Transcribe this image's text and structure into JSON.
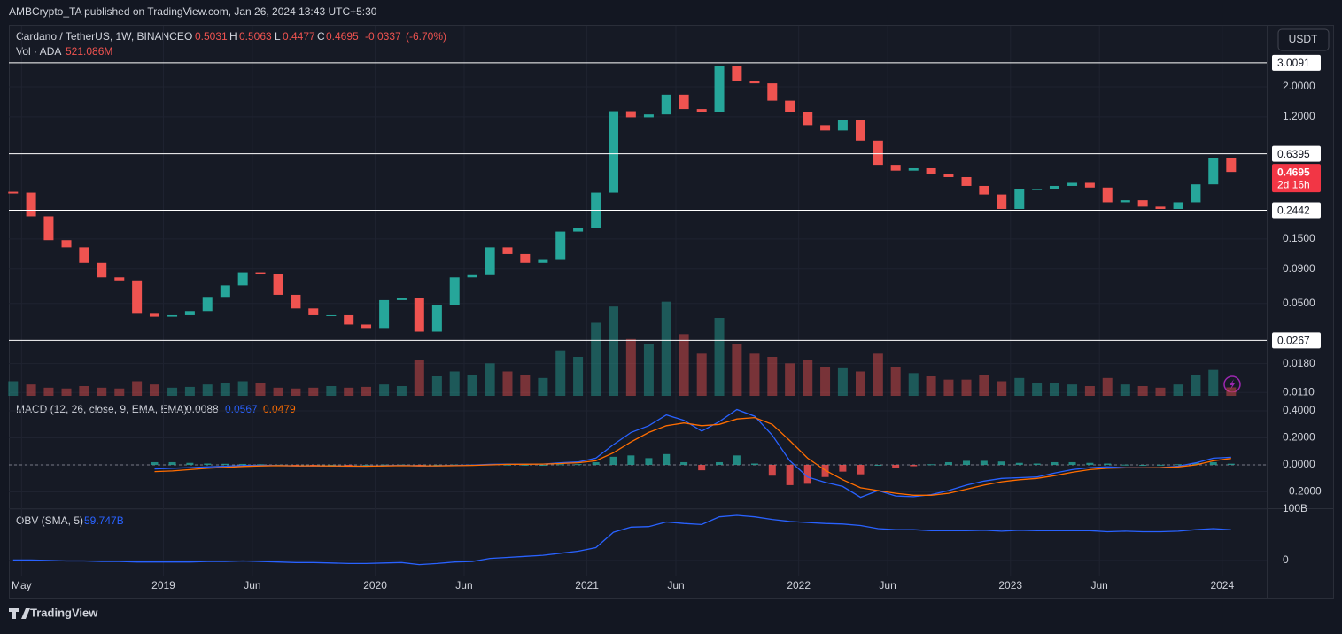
{
  "header": {
    "published": "AMBCrypto_TA published on TradingView.com, Jan 26, 2024 13:43 UTC+5:30",
    "currency": "USDT",
    "countdown": "2d 16h",
    "brand": "TradingView"
  },
  "legend": {
    "symbol": "Cardano / TetherUS, 1W, BINANCE",
    "o_label": "O",
    "open": 0.5031,
    "h_label": "H",
    "high": 0.5063,
    "l_label": "L",
    "low": 0.4477,
    "c_label": "C",
    "close": 0.4695,
    "change": -0.0337,
    "change_pct": "(-6.70%)",
    "vol_label": "Vol · ADA",
    "vol_value": "521.086M"
  },
  "chart_data": {
    "type": "candlestick",
    "log_scale": true,
    "grid": true,
    "up_color": "#26a69a",
    "down_color": "#ef5350",
    "x": [
      2018.29,
      2018.375,
      2018.458,
      2018.542,
      2018.625,
      2018.708,
      2018.792,
      2018.875,
      2018.958,
      2019.042,
      2019.125,
      2019.208,
      2019.292,
      2019.375,
      2019.458,
      2019.542,
      2019.625,
      2019.708,
      2019.792,
      2019.875,
      2019.958,
      2020.042,
      2020.125,
      2020.208,
      2020.292,
      2020.375,
      2020.458,
      2020.542,
      2020.625,
      2020.708,
      2020.792,
      2020.875,
      2020.958,
      2021.042,
      2021.125,
      2021.208,
      2021.292,
      2021.375,
      2021.458,
      2021.542,
      2021.625,
      2021.708,
      2021.792,
      2021.875,
      2021.958,
      2022.042,
      2022.125,
      2022.208,
      2022.292,
      2022.375,
      2022.458,
      2022.542,
      2022.625,
      2022.708,
      2022.792,
      2022.875,
      2022.958,
      2023.042,
      2023.125,
      2023.208,
      2023.292,
      2023.375,
      2023.458,
      2023.542,
      2023.625,
      2023.708,
      2023.792,
      2023.875,
      2023.958,
      2024.042
    ],
    "values": [
      0.33,
      0.22,
      0.147,
      0.13,
      0.1,
      0.078,
      0.074,
      0.042,
      0.04,
      0.041,
      0.044,
      0.056,
      0.068,
      0.085,
      0.083,
      0.058,
      0.046,
      0.041,
      0.041,
      0.035,
      0.033,
      0.053,
      0.055,
      0.031,
      0.049,
      0.078,
      0.081,
      0.13,
      0.116,
      0.1,
      0.105,
      0.17,
      0.18,
      0.33,
      1.32,
      1.19,
      1.25,
      1.75,
      1.37,
      1.3,
      2.85,
      2.2,
      2.12,
      1.58,
      1.31,
      1.04,
      0.95,
      1.13,
      0.8,
      0.53,
      0.48,
      0.5,
      0.45,
      0.43,
      0.37,
      0.32,
      0.25,
      0.35,
      0.35,
      0.37,
      0.39,
      0.36,
      0.28,
      0.29,
      0.26,
      0.25,
      0.28,
      0.38,
      0.59,
      0.4695
    ],
    "xlim": [
      2018.27,
      2024.21
    ],
    "ylim": [
      0.0104,
      5.57
    ],
    "xticks": [
      {
        "value": 2018.33,
        "label": "May"
      },
      {
        "value": 2019,
        "label": "2019"
      },
      {
        "value": 2019.42,
        "label": "Jun"
      },
      {
        "value": 2020,
        "label": "2020"
      },
      {
        "value": 2020.42,
        "label": "Jun"
      },
      {
        "value": 2021,
        "label": "2021"
      },
      {
        "value": 2021.42,
        "label": "Jun"
      },
      {
        "value": 2022,
        "label": "2022"
      },
      {
        "value": 2022.42,
        "label": "Jun"
      },
      {
        "value": 2023,
        "label": "2023"
      },
      {
        "value": 2023.42,
        "label": "Jun"
      },
      {
        "value": 2024,
        "label": "2024"
      }
    ],
    "yticks": [
      {
        "value": 0.011,
        "label": "0.0110"
      },
      {
        "value": 0.018,
        "label": "0.0180"
      },
      {
        "value": 0.05,
        "label": "0.0500"
      },
      {
        "value": 0.09,
        "label": "0.0900"
      },
      {
        "value": 0.15,
        "label": "0.1500"
      },
      {
        "value": 1.2,
        "label": "1.2000"
      },
      {
        "value": 2,
        "label": "2.0000"
      }
    ],
    "levels": [
      3.0091,
      0.6395,
      0.2442,
      0.0267
    ],
    "last_price": 0.4695,
    "volume": {
      "values": [
        900,
        700,
        500,
        450,
        600,
        500,
        450,
        900,
        700,
        500,
        550,
        700,
        800,
        900,
        800,
        500,
        450,
        500,
        600,
        500,
        550,
        700,
        600,
        2200,
        1200,
        1500,
        1300,
        2000,
        1500,
        1300,
        1100,
        2800,
        2400,
        4500,
        5500,
        3500,
        3200,
        5800,
        3800,
        2600,
        4800,
        3200,
        2600,
        2400,
        2000,
        2200,
        1800,
        1700,
        1500,
        2600,
        1800,
        1400,
        1200,
        1000,
        1000,
        1300,
        900,
        1100,
        800,
        800,
        700,
        600,
        1100,
        700,
        600,
        500,
        700,
        1300,
        1600,
        521
      ],
      "lim": [
        0,
        6000
      ]
    },
    "macd": {
      "label": "MACD (12, 26, close, 9, EMA, EMA)",
      "hist_label": 0.0088,
      "macd_label": 0.0567,
      "signal_label": 0.0479,
      "macd_color": "#2962ff",
      "signal_color": "#ff6d00",
      "macd": [
        null,
        null,
        null,
        null,
        null,
        null,
        null,
        null,
        -0.03,
        -0.025,
        -0.02,
        -0.015,
        -0.01,
        -0.005,
        -0.003,
        -0.005,
        -0.008,
        -0.008,
        -0.008,
        -0.01,
        -0.01,
        -0.006,
        -0.004,
        -0.008,
        -0.007,
        -0.004,
        -0.002,
        0.004,
        0.006,
        0.006,
        0.006,
        0.015,
        0.022,
        0.05,
        0.15,
        0.24,
        0.29,
        0.37,
        0.33,
        0.25,
        0.32,
        0.41,
        0.36,
        0.22,
        0.03,
        -0.09,
        -0.13,
        -0.16,
        -0.24,
        -0.19,
        -0.23,
        -0.235,
        -0.22,
        -0.19,
        -0.15,
        -0.12,
        -0.1,
        -0.095,
        -0.09,
        -0.06,
        -0.035,
        -0.02,
        -0.015,
        -0.02,
        -0.022,
        -0.02,
        -0.01,
        0.015,
        0.05,
        0.0567
      ],
      "signal": [
        null,
        null,
        null,
        null,
        null,
        null,
        null,
        null,
        -0.05,
        -0.045,
        -0.035,
        -0.025,
        -0.018,
        -0.012,
        -0.008,
        -0.006,
        -0.007,
        -0.007,
        -0.008,
        -0.009,
        -0.01,
        -0.008,
        -0.006,
        -0.007,
        -0.007,
        -0.006,
        -0.004,
        0.0,
        0.004,
        0.005,
        0.006,
        0.01,
        0.016,
        0.03,
        0.09,
        0.17,
        0.24,
        0.29,
        0.31,
        0.29,
        0.3,
        0.34,
        0.35,
        0.3,
        0.18,
        0.05,
        -0.04,
        -0.11,
        -0.17,
        -0.19,
        -0.21,
        -0.225,
        -0.225,
        -0.21,
        -0.18,
        -0.15,
        -0.125,
        -0.11,
        -0.1,
        -0.08,
        -0.055,
        -0.035,
        -0.025,
        -0.022,
        -0.022,
        -0.021,
        -0.015,
        0.0,
        0.03,
        0.0479
      ],
      "hist": [
        null,
        null,
        null,
        null,
        null,
        null,
        null,
        null,
        0.02,
        0.02,
        0.015,
        0.01,
        0.008,
        0.007,
        0.005,
        0.001,
        -0.001,
        -0.001,
        0,
        -0.001,
        0,
        0.002,
        0.002,
        -0.001,
        0,
        0.002,
        0.002,
        0.004,
        0.002,
        0.001,
        0,
        0.005,
        0.006,
        0.02,
        0.06,
        0.07,
        0.05,
        0.08,
        0.02,
        -0.04,
        0.02,
        0.07,
        0.01,
        -0.08,
        -0.15,
        -0.14,
        -0.09,
        -0.05,
        -0.07,
        0,
        -0.02,
        -0.01,
        0.005,
        0.02,
        0.03,
        0.03,
        0.025,
        0.015,
        0.01,
        0.02,
        0.02,
        0.015,
        0.01,
        0.002,
        0,
        0.001,
        0.005,
        0.015,
        0.02,
        0.0088
      ],
      "ylim": [
        -0.308,
        0.459
      ],
      "yticks": [
        {
          "value": 0.4,
          "label": "0.4000"
        },
        {
          "value": 0.2,
          "label": "0.2000"
        },
        {
          "value": 0,
          "label": "0.0000"
        },
        {
          "value": -0.2,
          "label": "−0.2000"
        }
      ]
    },
    "obv": {
      "label": "OBV (SMA, 5)",
      "value_label": "59.747B",
      "color": "#2962ff",
      "values": [
        1,
        1,
        0,
        -1,
        -1,
        -2,
        -2,
        -3,
        -3,
        -3,
        -3,
        -2,
        -2,
        -1,
        -2,
        -3,
        -4,
        -4,
        -5,
        -6,
        -6,
        -5,
        -4,
        -8,
        -6,
        -3,
        -2,
        4,
        6,
        8,
        10,
        14,
        18,
        25,
        55,
        65,
        66,
        75,
        72,
        70,
        85,
        88,
        85,
        80,
        76,
        74,
        72,
        71,
        68,
        62,
        60,
        60,
        58,
        58,
        58,
        59,
        57,
        59,
        58,
        58,
        58,
        58,
        56,
        57,
        56,
        56,
        57,
        60,
        62,
        59.747
      ],
      "ylim": [
        -26,
        100
      ],
      "yticks": [
        {
          "value": 100,
          "label": "100B"
        },
        0
      ]
    }
  }
}
